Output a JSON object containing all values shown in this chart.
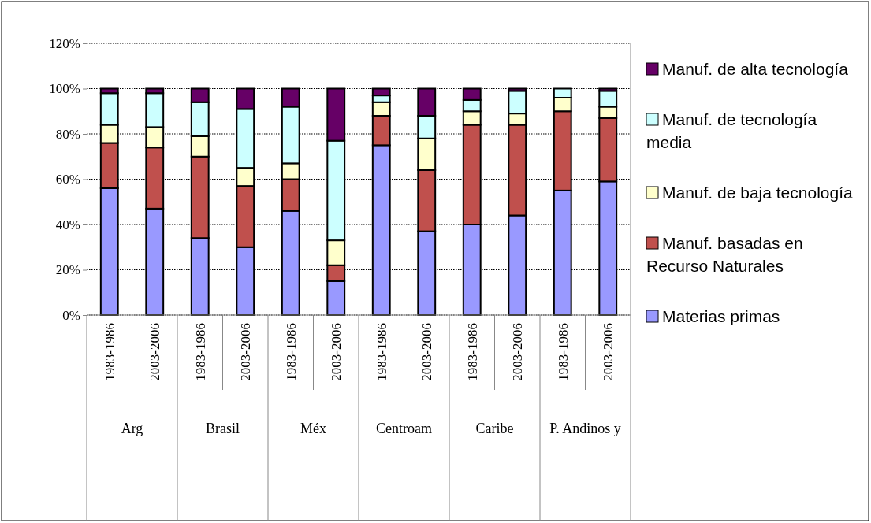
{
  "chart_data": {
    "type": "bar",
    "stacked": true,
    "categories": [
      "1983-1986",
      "2003-2006",
      "1983-1986",
      "2003-2006",
      "1983-1986",
      "2003-2006",
      "1983-1986",
      "2003-2006",
      "1983-1986",
      "2003-2006",
      "1983-1986",
      "2003-2006"
    ],
    "series": [
      {
        "name": "Materias primas",
        "color": "#9999ff",
        "values": [
          56,
          47,
          34,
          30,
          46,
          15,
          75,
          37,
          40,
          44,
          55,
          59
        ]
      },
      {
        "name": "Manuf. basadas en Recurso Naturales",
        "color": "#c0504d",
        "values": [
          20,
          27,
          36,
          27,
          14,
          7,
          13,
          27,
          44,
          40,
          35,
          28
        ]
      },
      {
        "name": "Manuf. de baja tecnología",
        "color": "#ffffcc",
        "values": [
          8,
          9,
          9,
          8,
          7,
          11,
          6,
          14,
          6,
          5,
          6,
          5
        ]
      },
      {
        "name": "Manuf. de tecnología media",
        "color": "#ccffff",
        "values": [
          14,
          15,
          15,
          26,
          25,
          44,
          3,
          10,
          5,
          10,
          4,
          7
        ]
      },
      {
        "name": "Manuf. de alta tecnología",
        "color": "#660066",
        "values": [
          2,
          2,
          6,
          9,
          8,
          23,
          3,
          12,
          5,
          1,
          0,
          1
        ]
      }
    ],
    "annotations": [
      "Arg",
      "Brasil",
      "Méx",
      "Centroam",
      "Caribe",
      "P. Andinos y"
    ],
    "ylim": [
      0,
      120
    ],
    "yticks": [
      {
        "value": 0,
        "label": "0%"
      },
      {
        "value": 20,
        "label": "20%"
      },
      {
        "value": 40,
        "label": "40%"
      },
      {
        "value": 60,
        "label": "60%"
      },
      {
        "value": 80,
        "label": "80%"
      },
      {
        "value": 100,
        "label": "100%"
      },
      {
        "value": 120,
        "label": "120%"
      }
    ],
    "grid": "y",
    "legend": "right"
  }
}
